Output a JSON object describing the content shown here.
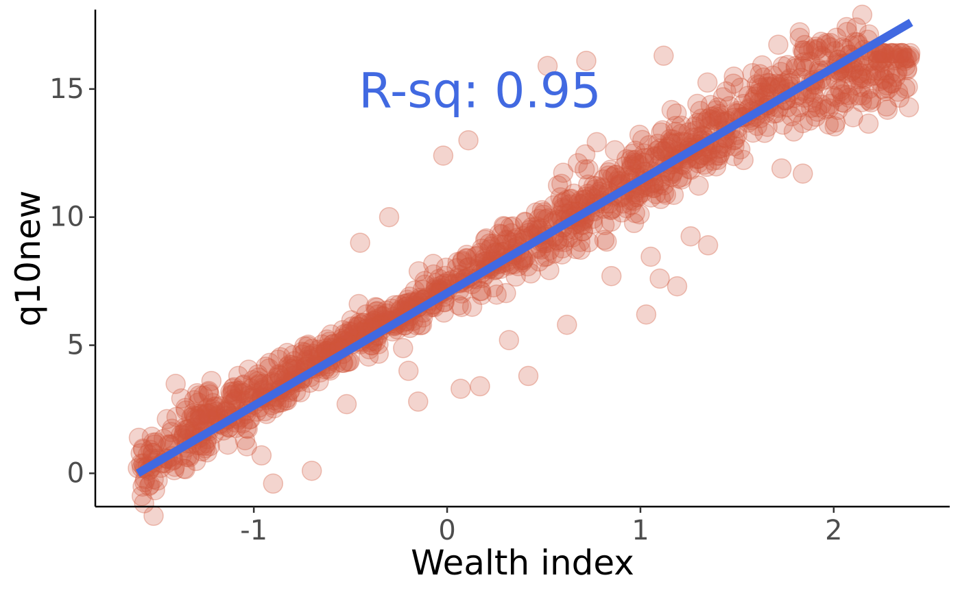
{
  "chart_data": {
    "type": "scatter",
    "title": "",
    "xlabel": "Wealth index",
    "ylabel": "q10new",
    "xlim": [
      -1.82,
      2.6
    ],
    "ylim": [
      -1.3,
      18.1
    ],
    "x_ticks": [
      -1,
      0,
      1,
      2
    ],
    "x_tick_labels": [
      "-1",
      "0",
      "1",
      "2"
    ],
    "y_ticks": [
      0,
      5,
      10,
      15
    ],
    "y_tick_labels": [
      "0",
      "5",
      "10",
      "15"
    ],
    "grid": false,
    "legend": "none",
    "point_color": "#d0553a",
    "point_opacity": 0.25,
    "fit_line": {
      "color": "#4169e1",
      "x": [
        -1.6,
        2.4
      ],
      "y": [
        0.0,
        17.6
      ]
    },
    "annotation": {
      "text": "R-sq: 0.95",
      "x": 0.17,
      "y": 14.8,
      "color": "#4169e1"
    },
    "scatter_trend": {
      "x": [
        -1.6,
        -1.2,
        -0.8,
        -0.4,
        0.0,
        0.4,
        0.8,
        1.2,
        1.6,
        2.0,
        2.4
      ],
      "y": [
        0.0,
        2.1,
        3.9,
        5.6,
        7.3,
        8.9,
        10.8,
        12.4,
        14.3,
        15.7,
        16.1
      ]
    },
    "scatter_points_sample": [
      {
        "x": -1.6,
        "y": 0.2
      },
      {
        "x": -1.52,
        "y": 1.2
      },
      {
        "x": -1.4,
        "y": 2.2
      },
      {
        "x": -1.08,
        "y": 3.8
      },
      {
        "x": -0.96,
        "y": 0.7
      },
      {
        "x": -0.9,
        "y": -0.4
      },
      {
        "x": -0.7,
        "y": 0.1
      },
      {
        "x": -0.52,
        "y": 2.7
      },
      {
        "x": -0.45,
        "y": 9.0
      },
      {
        "x": -0.3,
        "y": 10.0
      },
      {
        "x": -0.2,
        "y": 4.0
      },
      {
        "x": -0.15,
        "y": 2.8
      },
      {
        "x": -0.02,
        "y": 12.4
      },
      {
        "x": 0.07,
        "y": 3.3
      },
      {
        "x": 0.11,
        "y": 13.0
      },
      {
        "x": 0.17,
        "y": 3.4
      },
      {
        "x": 0.32,
        "y": 5.2
      },
      {
        "x": 0.42,
        "y": 3.8
      },
      {
        "x": 0.52,
        "y": 15.9
      },
      {
        "x": 0.62,
        "y": 5.8
      },
      {
        "x": 0.72,
        "y": 16.1
      },
      {
        "x": 0.85,
        "y": 7.7
      },
      {
        "x": 1.03,
        "y": 6.2
      },
      {
        "x": 1.1,
        "y": 7.6
      },
      {
        "x": 1.12,
        "y": 16.3
      },
      {
        "x": 1.19,
        "y": 7.3
      },
      {
        "x": 1.35,
        "y": 8.9
      },
      {
        "x": 1.73,
        "y": 11.9
      },
      {
        "x": 1.84,
        "y": 11.7
      },
      {
        "x": 2.1,
        "y": 13.9
      },
      {
        "x": 2.38,
        "y": 16.2
      },
      {
        "x": 2.38,
        "y": 15.8
      }
    ]
  }
}
